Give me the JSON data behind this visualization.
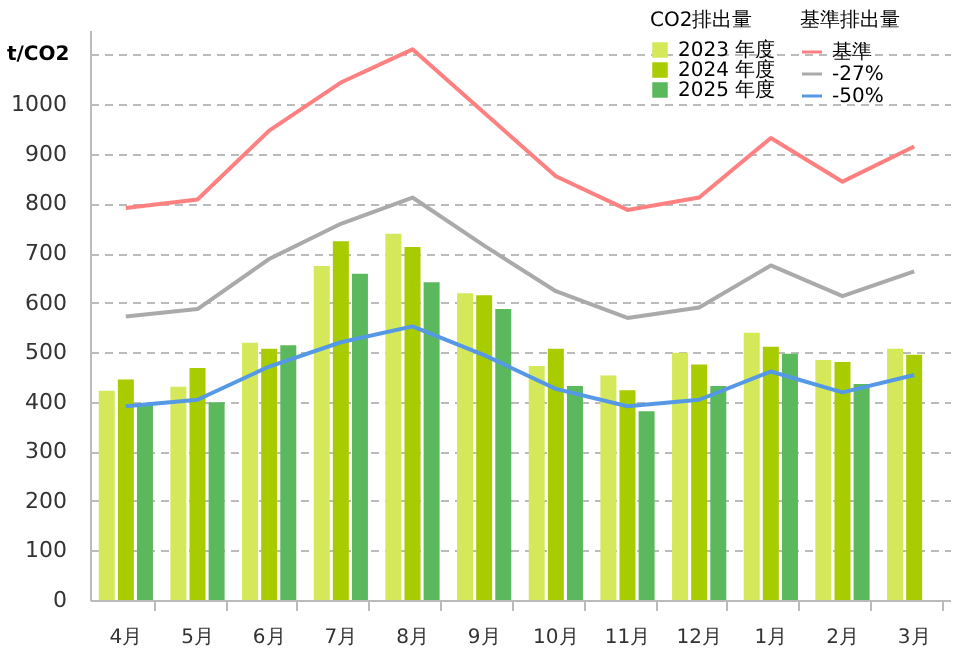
{
  "chart_data": {
    "type": "bar",
    "ylabel": "t/CO2",
    "legend_title": "CO2排出量",
    "annotations": [
      "基準排出量"
    ],
    "categories": [
      "4月",
      "5月",
      "6月",
      "7月",
      "8月",
      "9月",
      "10月",
      "11月",
      "12月",
      "1月",
      "2月",
      "3月"
    ],
    "series": [
      {
        "name": "2023 年度",
        "type": "bar",
        "color": "#d4e85a",
        "values": [
          422,
          430,
          519,
          674,
          739,
          619,
          472,
          453,
          499,
          539,
          484,
          507
        ]
      },
      {
        "name": "2024 年度",
        "type": "bar",
        "color": "#a8cc00",
        "values": [
          445,
          468,
          507,
          724,
          712,
          615,
          507,
          423,
          475,
          511,
          480,
          495
        ]
      },
      {
        "name": "2025 年度",
        "type": "bar",
        "color": "#5cb85c",
        "values": [
          394,
          399,
          514,
          658,
          641,
          587,
          432,
          381,
          432,
          497,
          436,
          null
        ]
      },
      {
        "name": "基準",
        "type": "line",
        "color": "#ff8080",
        "values": [
          791,
          808,
          947,
          1044,
          1111,
          983,
          855,
          787,
          812,
          932,
          844,
          915
        ]
      },
      {
        "name": "-27%",
        "type": "line",
        "color": "#aaaaaa",
        "values": [
          572,
          587,
          688,
          759,
          812,
          715,
          623,
          569,
          590,
          675,
          613,
          663
        ]
      },
      {
        "name": "-50%",
        "type": "line",
        "color": "#5599e6",
        "values": [
          391,
          404,
          471,
          520,
          552,
          494,
          426,
          391,
          404,
          461,
          419,
          454
        ]
      }
    ],
    "ylim": [
      0,
      1150
    ],
    "yticks": [
      0,
      100,
      200,
      300,
      400,
      500,
      600,
      700,
      800,
      900,
      {
        "value": 1000,
        "label": "1000"
      },
      {
        "value": 1100,
        "label": null
      }
    ],
    "grid": "y",
    "legend": "top right",
    "line_style": "solid",
    "marker": "none"
  }
}
